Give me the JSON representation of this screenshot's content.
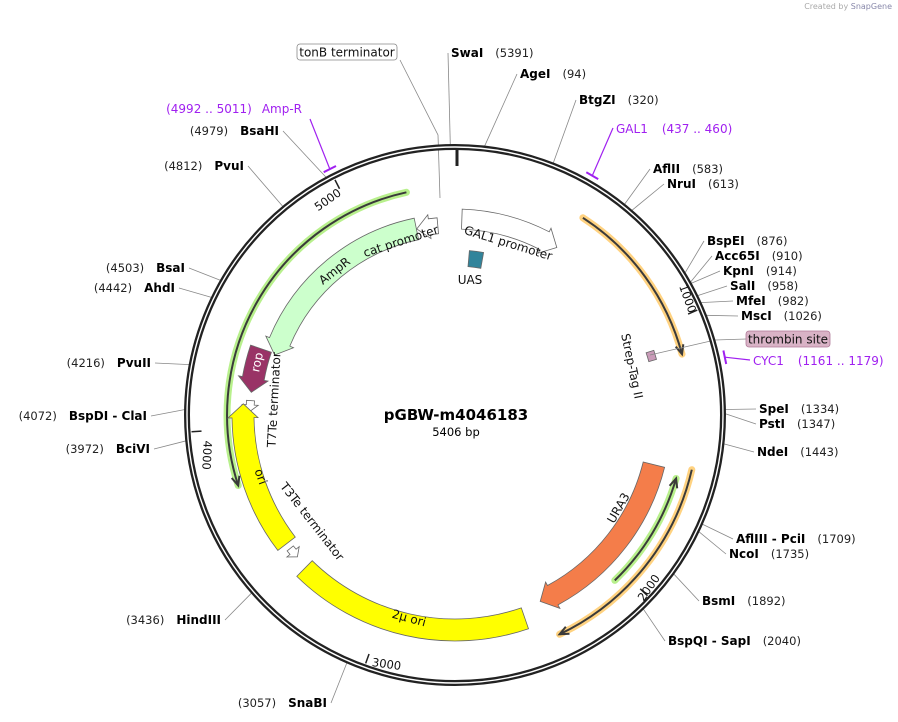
{
  "credit": {
    "prefix": "Created by",
    "brand": "SnapGene"
  },
  "plasmid": {
    "name": "pGBW-m4046183",
    "length_label": "5406 bp",
    "length": 5406
  },
  "ticks": [
    "1000",
    "2000",
    "3000",
    "4000",
    "5000"
  ],
  "enzymes": [
    {
      "name": "SwaI",
      "pos": "(5391)",
      "bp": 5391
    },
    {
      "name": "AgeI",
      "pos": "(94)",
      "bp": 94
    },
    {
      "name": "BtgZI",
      "pos": "(320)",
      "bp": 320
    },
    {
      "name": "AflII",
      "pos": "(583)",
      "bp": 583
    },
    {
      "name": "NruI",
      "pos": "(613)",
      "bp": 613
    },
    {
      "name": "BspEI",
      "pos": "(876)",
      "bp": 876
    },
    {
      "name": "Acc65I",
      "pos": "(910)",
      "bp": 910
    },
    {
      "name": "KpnI",
      "pos": "(914)",
      "bp": 914
    },
    {
      "name": "SalI",
      "pos": "(958)",
      "bp": 958
    },
    {
      "name": "MfeI",
      "pos": "(982)",
      "bp": 982
    },
    {
      "name": "MscI",
      "pos": "(1026)",
      "bp": 1026
    },
    {
      "name": "SpeI",
      "pos": "(1334)",
      "bp": 1334
    },
    {
      "name": "PstI",
      "pos": "(1347)",
      "bp": 1347
    },
    {
      "name": "NdeI",
      "pos": "(1443)",
      "bp": 1443
    },
    {
      "name": "AflIII  - PciI",
      "pos": "(1709)",
      "bp": 1709
    },
    {
      "name": "NcoI",
      "pos": "(1735)",
      "bp": 1735
    },
    {
      "name": "BsmI",
      "pos": "(1892)",
      "bp": 1892
    },
    {
      "name": "BspQI  - SapI",
      "pos": "(2040)",
      "bp": 2040
    },
    {
      "name": "SnaBI",
      "pos": "(3057)",
      "bp": 3057
    },
    {
      "name": "HindIII",
      "pos": "(3436)",
      "bp": 3436
    },
    {
      "name": "BciVI",
      "pos": "(3972)",
      "bp": 3972
    },
    {
      "name": "BspDI  - ClaI",
      "pos": "(4072)",
      "bp": 4072
    },
    {
      "name": "PvuII",
      "pos": "(4216)",
      "bp": 4216
    },
    {
      "name": "AhdI",
      "pos": "(4442)",
      "bp": 4442
    },
    {
      "name": "BsaI",
      "pos": "(4503)",
      "bp": 4503
    },
    {
      "name": "PvuI",
      "pos": "(4812)",
      "bp": 4812
    },
    {
      "name": "BsaHI",
      "pos": "(4979)",
      "bp": 4979
    }
  ],
  "primers": [
    {
      "name": "GAL1",
      "pos": "(437 .. 460)",
      "bp": 448
    },
    {
      "name": "CYC1",
      "pos": "(1161 .. 1179)",
      "bp": 1170
    },
    {
      "name": "Amp-R",
      "pos": "(4992 .. 5011)",
      "bp": 5001
    }
  ],
  "boxed_labels": [
    {
      "name": "tonB terminator",
      "bp": 5345
    },
    {
      "name": "thrombin site",
      "bp": 1110
    }
  ],
  "features": [
    {
      "name": "GAL1 promoter",
      "start": 30,
      "end": 470,
      "dir": 1,
      "color": "#ffffff"
    },
    {
      "name": "UAS",
      "start": 75,
      "end": 150,
      "dir": 0,
      "color": "#31849b"
    },
    {
      "name": "Strep-Tag II",
      "start": 1081,
      "end": 1120,
      "dir": 0,
      "color": "#c99bb8"
    },
    {
      "name": "AmpR",
      "start": 4331,
      "end": 5230,
      "dir": -1,
      "color": "#ccffcc"
    },
    {
      "name": "cat promoter",
      "start": 5232,
      "end": 5328,
      "dir": -1,
      "color": "#ffffff"
    },
    {
      "name": "rop",
      "start": 4150,
      "end": 4338,
      "dir": -1,
      "color": "#993366"
    },
    {
      "name": "T7Te terminator",
      "start": 4070,
      "end": 4115,
      "dir": -1,
      "color": "#ffffff"
    },
    {
      "name": "ori",
      "start": 3493,
      "end": 4100,
      "dir": 1,
      "color": "#ffff00"
    },
    {
      "name": "T3Te terminator",
      "start": 3424,
      "end": 3469,
      "dir": -1,
      "color": "#ffffff"
    },
    {
      "name": "2μ ori",
      "start": 2418,
      "end": 3370,
      "dir": 0,
      "color": "#ffff00"
    },
    {
      "name": "URA3",
      "start": 1562,
      "end": 2334,
      "dir": 1,
      "color": "#f47d4a"
    }
  ],
  "orfs": [
    {
      "start": 495,
      "end": 1126,
      "dir": 1,
      "glow": "#ffd280"
    },
    {
      "start": 3784,
      "end": 5221,
      "dir": -1,
      "glow": "#b8f08c"
    },
    {
      "start": 1592,
      "end": 2042,
      "dir": -1,
      "glow": "#b8f08c"
    },
    {
      "start": 1547,
      "end": 2320,
      "dir": 1,
      "glow": "#ffd280"
    }
  ]
}
